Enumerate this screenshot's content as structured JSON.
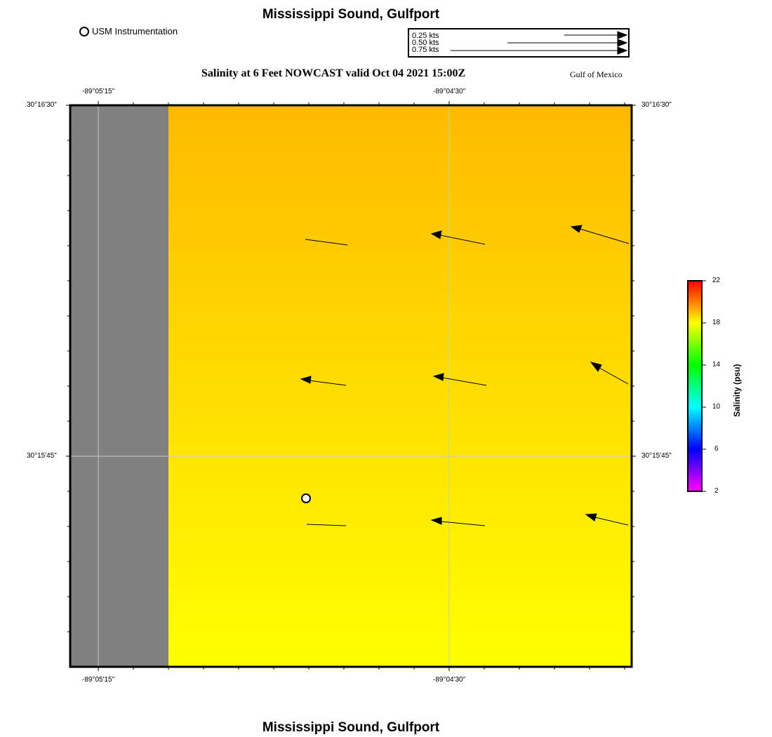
{
  "header": {
    "title": "Mississippi Sound, Gulfport",
    "subtitle": "Salinity at 6 Feet NOWCAST valid Oct 04 2021 15:00Z",
    "region": "Gulf of Mexico"
  },
  "footer": {
    "title": "Mississippi Sound, Gulfport"
  },
  "legend": {
    "station_label": "USM Instrumentation",
    "vector_scale": [
      "0.25 kts",
      "0.50 kts",
      "0.75 kts"
    ]
  },
  "axes": {
    "lon_top": [
      "-89°05'15\"",
      "-89°04'30\""
    ],
    "lon_bottom": [
      "-89°05'15\"",
      "-89°04'30\""
    ],
    "lat_left": [
      "30°16'30\"",
      "30°15'45\""
    ],
    "lat_right": [
      "30°16'30\"",
      "30°15'45\""
    ]
  },
  "colorbar": {
    "title": "Salinity (psu)",
    "ticks": [
      "22",
      "18",
      "14",
      "10",
      "6",
      "2"
    ],
    "min": 2,
    "max": 22,
    "colors": [
      "#ff00ff",
      "#0000ff",
      "#00ffff",
      "#00ff00",
      "#ffff00",
      "#ff0000"
    ]
  },
  "field": {
    "land_color": "#808080",
    "salinity_top_color": "#ffba00",
    "salinity_bottom_color": "#ffff00"
  }
}
